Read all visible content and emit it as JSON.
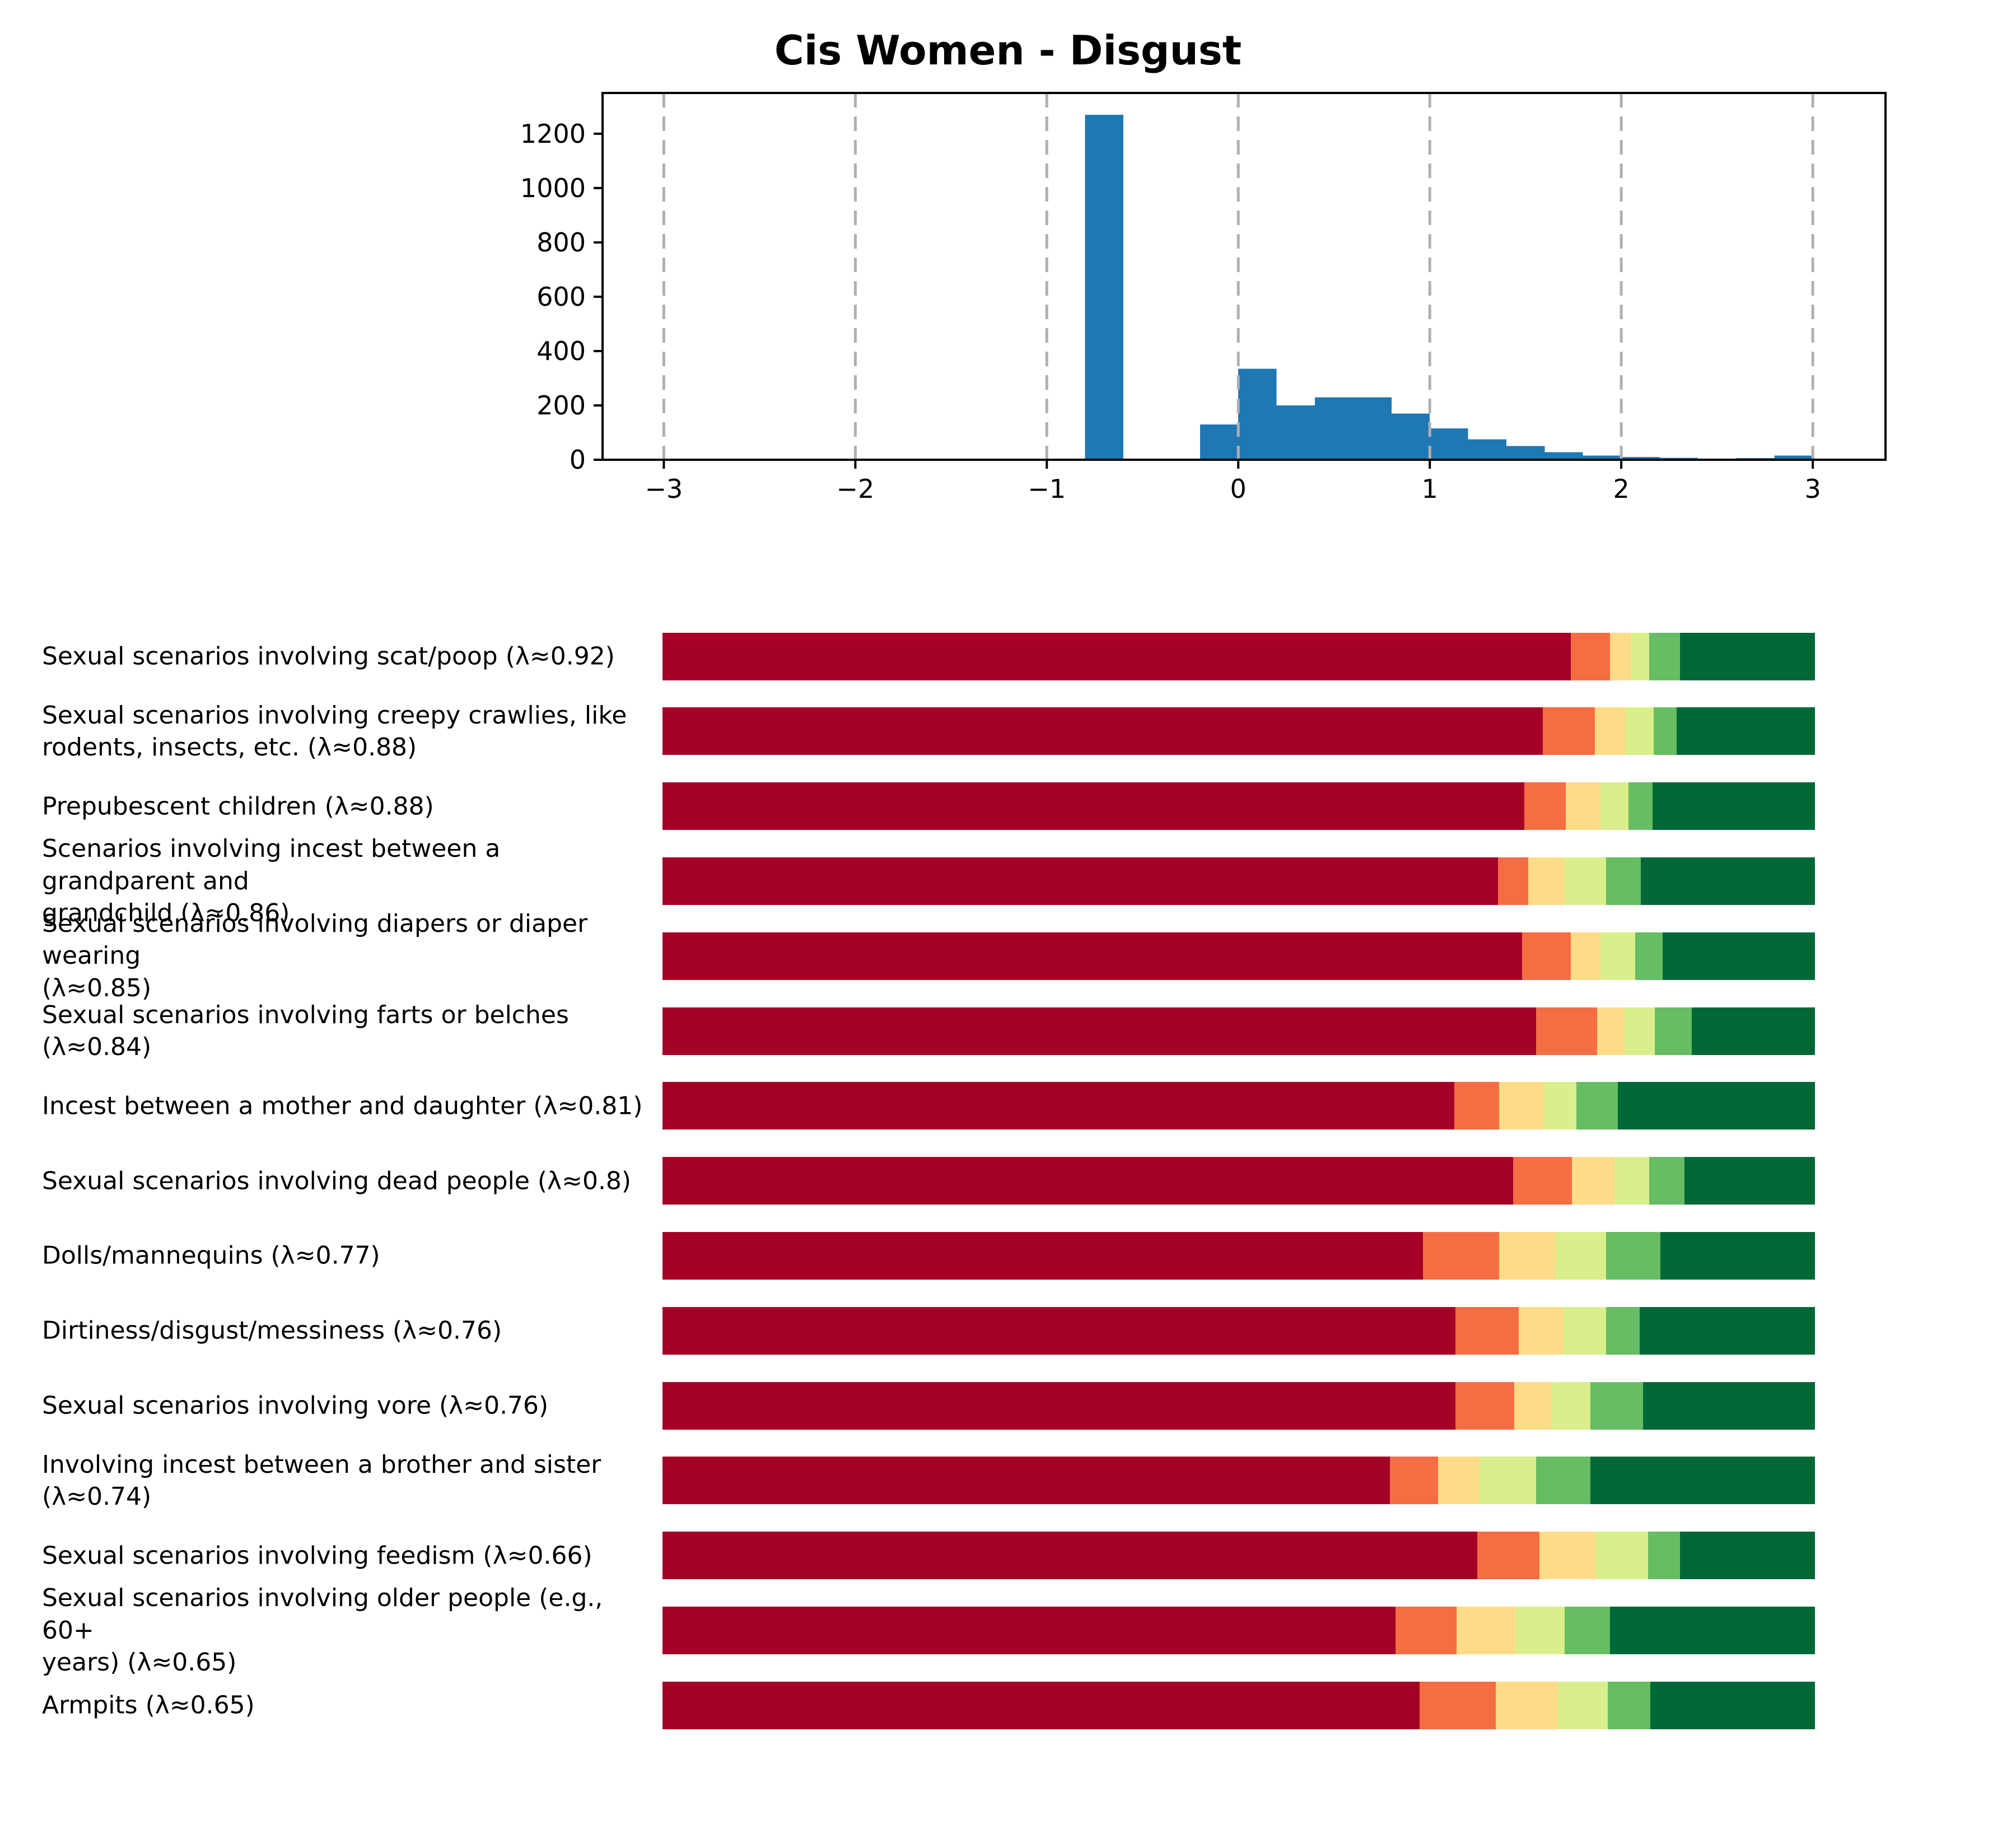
{
  "title": "Cis Women - Disgust",
  "colors": {
    "hist_bar": "#1f77b4",
    "grid": "#b0b0b0",
    "axis": "#000000",
    "text": "#000000",
    "segment_colors": [
      "#a50026",
      "#f46d43",
      "#fedc87",
      "#d9ef8b",
      "#66bd63",
      "#006837"
    ]
  },
  "chart_data": [
    {
      "type": "bar",
      "subtype": "histogram",
      "title": "Cis Women - Disgust",
      "xlabel": "",
      "ylabel": "",
      "bin_start": -0.8,
      "bin_width": 0.2,
      "counts": [
        1270,
        0,
        0,
        130,
        335,
        200,
        230,
        230,
        170,
        115,
        75,
        50,
        28,
        15,
        10,
        7,
        2,
        6,
        15
      ],
      "xlim": [
        -3.32,
        3.38
      ],
      "ylim": [
        0,
        1350
      ],
      "xticks": [
        -3,
        -2,
        -1,
        0,
        1,
        2,
        3
      ],
      "xtick_labels": [
        "−3",
        "−2",
        "−1",
        "0",
        "1",
        "2",
        "3"
      ],
      "yticks": [
        0,
        200,
        400,
        600,
        800,
        1000,
        1200
      ],
      "ytick_labels": [
        "0",
        "200",
        "400",
        "600",
        "800",
        "1000",
        "1200"
      ],
      "grid": "vertical dashed gridlines at integer x, drawn above bars",
      "legend": "none",
      "bar_color": "#1f77b4"
    },
    {
      "type": "bar",
      "subtype": "stacked-horizontal-100pct",
      "title": "",
      "xlabel": "",
      "ylabel": "",
      "segment_labels": [
        "dark-red",
        "orange",
        "yellow",
        "yellow-green",
        "green",
        "dark-green"
      ],
      "segment_colors": [
        "#a50026",
        "#f46d43",
        "#fedc87",
        "#d9ef8b",
        "#66bd63",
        "#006837"
      ],
      "legend": "none",
      "rows": [
        {
          "label": "Sexual scenarios involving scat/poop (λ≈0.92)",
          "lambda": "0.92",
          "fractions": [
            0.788,
            0.034,
            0.018,
            0.016,
            0.027,
            0.117
          ]
        },
        {
          "label": "Sexual scenarios involving creepy crawlies, like\nrodents, insects, etc. (λ≈0.88)",
          "lambda": "0.88",
          "fractions": [
            0.764,
            0.045,
            0.027,
            0.024,
            0.02,
            0.12
          ]
        },
        {
          "label": "Prepubescent children (λ≈0.88)",
          "lambda": "0.88",
          "fractions": [
            0.748,
            0.036,
            0.03,
            0.024,
            0.021,
            0.141
          ]
        },
        {
          "label": "Scenarios involving incest between a grandparent and\ngrandchild (λ≈0.86)",
          "lambda": "0.86",
          "fractions": [
            0.725,
            0.026,
            0.032,
            0.036,
            0.03,
            0.151
          ]
        },
        {
          "label": "Sexual scenarios involving diapers or diaper wearing\n(λ≈0.85)",
          "lambda": "0.85",
          "fractions": [
            0.746,
            0.042,
            0.026,
            0.03,
            0.024,
            0.132
          ]
        },
        {
          "label": "Sexual scenarios involving farts or belches (λ≈0.84)",
          "lambda": "0.84",
          "fractions": [
            0.758,
            0.053,
            0.024,
            0.026,
            0.032,
            0.107
          ]
        },
        {
          "label": "Incest between a mother and daughter (λ≈0.81)",
          "lambda": "0.81",
          "fractions": [
            0.687,
            0.039,
            0.039,
            0.028,
            0.036,
            0.171
          ]
        },
        {
          "label": "Sexual scenarios involving dead people (λ≈0.8)",
          "lambda": "0.8",
          "fractions": [
            0.738,
            0.051,
            0.037,
            0.03,
            0.031,
            0.113
          ]
        },
        {
          "label": "Dolls/mannequins (λ≈0.77)",
          "lambda": "0.77",
          "fractions": [
            0.66,
            0.066,
            0.049,
            0.044,
            0.047,
            0.134
          ]
        },
        {
          "label": "Dirtiness/disgust/messiness (λ≈0.76)",
          "lambda": "0.76",
          "fractions": [
            0.688,
            0.055,
            0.039,
            0.037,
            0.029,
            0.152
          ]
        },
        {
          "label": "Sexual scenarios involving vore (λ≈0.76)",
          "lambda": "0.76",
          "fractions": [
            0.688,
            0.051,
            0.032,
            0.034,
            0.046,
            0.149
          ]
        },
        {
          "label": "Involving incest between a brother and sister (λ≈0.74)",
          "lambda": "0.74",
          "fractions": [
            0.631,
            0.042,
            0.036,
            0.049,
            0.047,
            0.195
          ]
        },
        {
          "label": "Sexual scenarios involving feedism (λ≈0.66)",
          "lambda": "0.66",
          "fractions": [
            0.707,
            0.054,
            0.049,
            0.045,
            0.028,
            0.117
          ]
        },
        {
          "label": "Sexual scenarios involving older people (e.g., 60+\nyears) (λ≈0.65)",
          "lambda": "0.65",
          "fractions": [
            0.636,
            0.053,
            0.051,
            0.043,
            0.039,
            0.178
          ]
        },
        {
          "label": "Armpits (λ≈0.65)",
          "lambda": "0.65",
          "fractions": [
            0.657,
            0.066,
            0.054,
            0.043,
            0.037,
            0.143
          ]
        }
      ]
    }
  ]
}
